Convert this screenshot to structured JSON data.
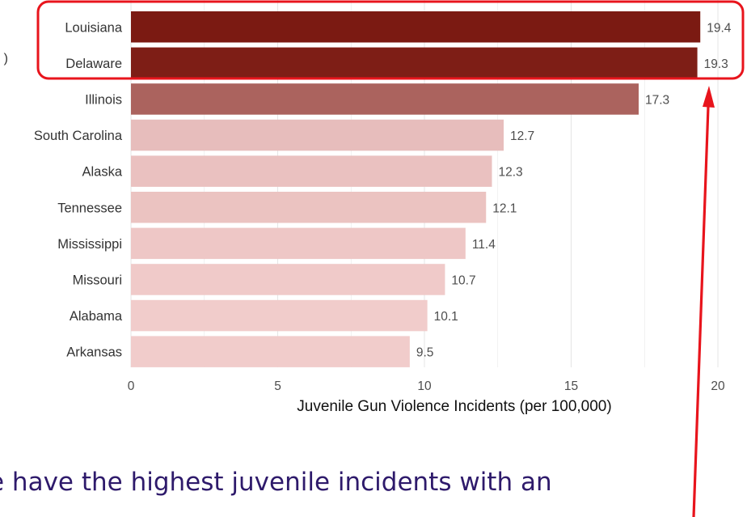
{
  "chart_data": {
    "type": "bar",
    "orientation": "horizontal",
    "categories": [
      "Louisiana",
      "Delaware",
      "Illinois",
      "South Carolina",
      "Alaska",
      "Tennessee",
      "Mississippi",
      "Missouri",
      "Alabama",
      "Arkansas"
    ],
    "values": [
      19.4,
      19.3,
      17.3,
      12.7,
      12.3,
      12.1,
      11.4,
      10.7,
      10.1,
      9.5
    ],
    "data_labels": [
      "19.4",
      "19.3",
      "17.3",
      "12.7",
      "12.3",
      "12.1",
      "11.4",
      "10.7",
      "10.1",
      "9.5"
    ],
    "xlabel": "Juvenile Gun Violence Incidents (per 100,000)",
    "ylabel": "",
    "xlim": [
      0,
      20
    ],
    "xticks": [
      0,
      5,
      10,
      15,
      20
    ],
    "xtick_labels": [
      "0",
      "5",
      "10",
      "15",
      "20"
    ],
    "grid": "vertical",
    "colors": {
      "bar_fill_low": "#f1cccb",
      "bar_fill_high": "#7b1a12",
      "grid": "#e6e6e6",
      "tick_text": "#4d4d4d",
      "label_text": "#333333",
      "highlight": "#e8141c",
      "caption_text": "#2e1a6b"
    },
    "annotations": {
      "highlight_box": [
        "Louisiana",
        "Delaware"
      ],
      "arrow": "points up to the highlighted bars"
    }
  },
  "cropped_text": {
    "left_fragment": ")",
    "caption": "e have the highest juvenile incidents with an"
  }
}
